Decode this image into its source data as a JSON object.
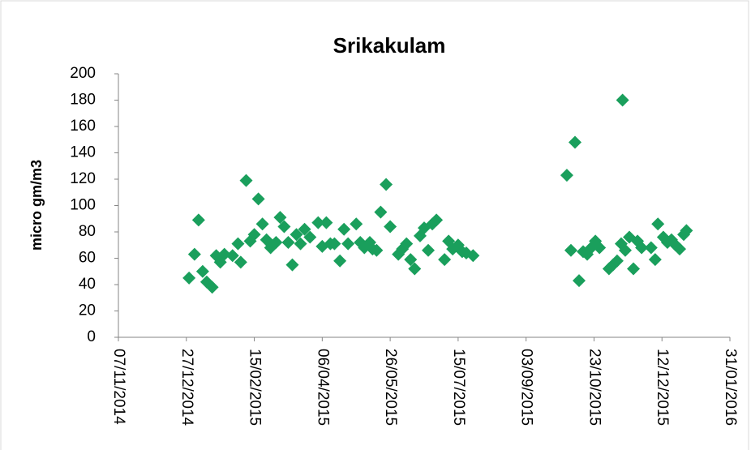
{
  "chart_data": {
    "type": "scatter",
    "title": "Srikakulam",
    "y_label": "micro gm/m3",
    "color": "#1a9f5c",
    "marker": "diamond",
    "xlim": [
      41950,
      42400
    ],
    "xticks": [
      {
        "value": 41950,
        "label": "07/11/2014"
      },
      {
        "value": 42000,
        "label": "27/12/2014"
      },
      {
        "value": 42050,
        "label": "15/02/2015"
      },
      {
        "value": 42100,
        "label": "06/04/2015"
      },
      {
        "value": 42150,
        "label": "26/05/2015"
      },
      {
        "value": 42200,
        "label": "15/07/2015"
      },
      {
        "value": 42250,
        "label": "03/09/2015"
      },
      {
        "value": 42300,
        "label": "23/10/2015"
      },
      {
        "value": 42350,
        "label": "12/12/2015"
      },
      {
        "value": 42400,
        "label": "31/01/2016"
      }
    ],
    "ylim": [
      0,
      200
    ],
    "yticks": [
      0,
      20,
      40,
      60,
      80,
      100,
      120,
      140,
      160,
      180,
      200
    ],
    "x": [
      42002,
      42006,
      42009,
      42012,
      42015,
      42019,
      42022,
      42025,
      42028,
      42034,
      42038,
      42040,
      42044,
      42047,
      42050,
      42053,
      42056,
      42059,
      42062,
      42066,
      42069,
      42072,
      42075,
      42078,
      42081,
      42084,
      42087,
      42091,
      42097,
      42100,
      42103,
      42106,
      42109,
      42113,
      42116,
      42119,
      42125,
      42128,
      42131,
      42135,
      42137,
      42140,
      42143,
      42147,
      42150,
      42156,
      42159,
      42162,
      42165,
      42168,
      42172,
      42175,
      42178,
      42181,
      42184,
      42190,
      42193,
      42196,
      42200,
      42203,
      42206,
      42211,
      42280,
      42283,
      42286,
      42289,
      42292,
      42295,
      42298,
      42301,
      42304,
      42311,
      42314,
      42317,
      42320,
      42321,
      42323,
      42326,
      42329,
      42332,
      42335,
      42342,
      42345,
      42347,
      42351,
      42354,
      42357,
      42360,
      42363,
      42366,
      42368
    ],
    "values": [
      45,
      63,
      89,
      50,
      42,
      38,
      62,
      57,
      63,
      62,
      71,
      57,
      119,
      73,
      78,
      105,
      86,
      74,
      68,
      72,
      91,
      84,
      72,
      55,
      78,
      71,
      82,
      76,
      87,
      69,
      87,
      71,
      71,
      58,
      82,
      71,
      86,
      72,
      68,
      72,
      67,
      66,
      95,
      116,
      84,
      63,
      67,
      71,
      59,
      52,
      77,
      83,
      66,
      86,
      89,
      59,
      73,
      67,
      70,
      65,
      64,
      62,
      123,
      66,
      148,
      43,
      65,
      63,
      68,
      73,
      68,
      52,
      55,
      58,
      71,
      180,
      66,
      76,
      52,
      73,
      68,
      68,
      59,
      86,
      76,
      72,
      74,
      70,
      67,
      78,
      81
    ]
  }
}
